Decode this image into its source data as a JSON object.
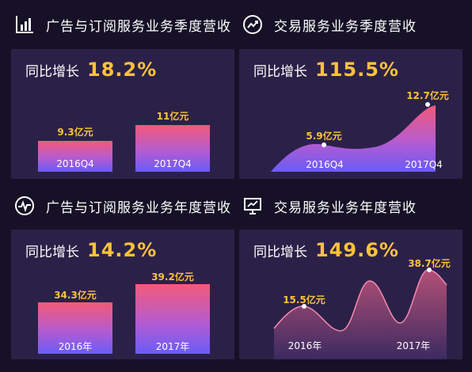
{
  "sections": {
    "ad_quarter_title": "广告与订阅服务业务季度营收",
    "trade_quarter_title": "交易服务业务季度营收",
    "ad_year_title": "广告与订阅服务业务年度营收",
    "trade_year_title": "交易服务业务年度营收"
  },
  "icons": {
    "ad_quarter": "bar-chart-icon",
    "trade_quarter": "trend-line-icon",
    "ad_year": "pulse-chart-icon",
    "trade_year": "presentation-board-icon"
  },
  "colors": {
    "value_label": "#ffc23a",
    "bar_top": "#f35a79",
    "bar_bottom": "#6a5cf7",
    "card_bg": "#2b2148",
    "page_bg": "#161126"
  },
  "growth_label": "同比增长",
  "chart_data": [
    {
      "type": "bar",
      "categories": [
        "2016Q4",
        "2017Q4"
      ],
      "values": [
        9.3,
        11
      ],
      "labels": [
        "9.3亿元",
        "11亿元"
      ],
      "growth": "18.2%"
    },
    {
      "type": "area",
      "categories": [
        "2016Q4",
        "2017Q4"
      ],
      "values": [
        5.9,
        12.7
      ],
      "labels": [
        "5.9亿元",
        "12.7亿元"
      ],
      "growth": "115.5%"
    },
    {
      "type": "bar",
      "categories": [
        "2016年",
        "2017年"
      ],
      "values": [
        34.3,
        39.2
      ],
      "labels": [
        "34.3亿元",
        "39.2亿元"
      ],
      "growth": "14.2%"
    },
    {
      "type": "area",
      "categories": [
        "2016年",
        "2017年"
      ],
      "values": [
        15.5,
        38.7
      ],
      "labels": [
        "15.5亿元",
        "38.7亿元"
      ],
      "growth": "149.6%"
    }
  ]
}
